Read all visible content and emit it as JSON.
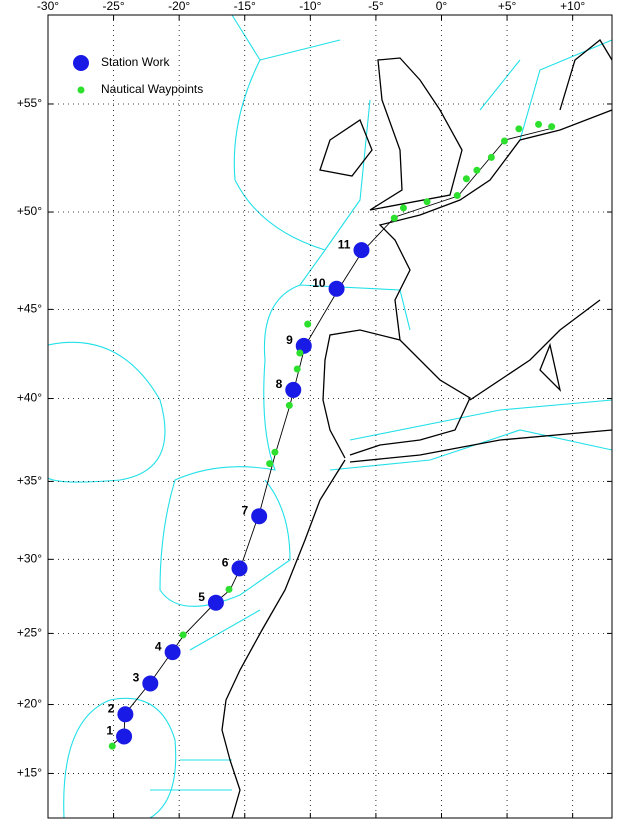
{
  "chart_data": {
    "type": "scatter",
    "projection": "mercator",
    "xlim": [
      -30,
      13
    ],
    "ylim": [
      11.7,
      58.7
    ],
    "xticks": [
      {
        "value": -30,
        "label": "-30°"
      },
      {
        "value": -25,
        "label": "-25°"
      },
      {
        "value": -20,
        "label": "-20°"
      },
      {
        "value": -15,
        "label": "-15°"
      },
      {
        "value": -10,
        "label": "-10°"
      },
      {
        "value": -5,
        "label": "-5°"
      },
      {
        "value": 0,
        "label": "0°"
      },
      {
        "value": 5,
        "label": "+5°"
      },
      {
        "value": 10,
        "label": "+10°"
      }
    ],
    "yticks": [
      {
        "value": 15,
        "label": "+15°"
      },
      {
        "value": 20,
        "label": "+20°"
      },
      {
        "value": 25,
        "label": "+25°"
      },
      {
        "value": 30,
        "label": "+30°"
      },
      {
        "value": 35,
        "label": "+35°"
      },
      {
        "value": 40,
        "label": "+40°"
      },
      {
        "value": 45,
        "label": "+45°"
      },
      {
        "value": 50,
        "label": "+50°"
      },
      {
        "value": 55,
        "label": "+55°"
      }
    ],
    "grid": true,
    "legend": "top-left",
    "series": [
      {
        "name": "Station Work",
        "color": "#1a1ae6",
        "x": [
          -24.2,
          -24.1,
          -22.2,
          -20.5,
          -17.2,
          -15.4,
          -13.9,
          -11.3,
          -10.5,
          -8.0,
          -6.1
        ],
        "values": [
          17.7,
          19.3,
          21.5,
          23.7,
          27.1,
          29.4,
          32.8,
          40.5,
          43.0,
          46.1,
          48.1
        ],
        "labels": [
          "1",
          "2",
          "3",
          "4",
          "5",
          "6",
          "7",
          "8",
          "9",
          "10",
          "11"
        ]
      },
      {
        "name": "Nautical Waypoints",
        "color": "#2ee02e",
        "x": [
          -25.1,
          -19.7,
          -16.2,
          -13.1,
          -12.7,
          -11.6,
          -11.0,
          -10.8,
          -10.2,
          -3.6,
          -2.9,
          -1.1,
          1.2,
          1.9,
          2.7,
          3.8,
          4.8,
          5.9,
          7.4,
          8.4
        ],
        "values": [
          17.0,
          24.9,
          28.0,
          36.1,
          36.8,
          39.6,
          41.7,
          42.6,
          44.2,
          49.7,
          50.2,
          50.5,
          50.8,
          51.6,
          52.0,
          52.6,
          53.35,
          53.9,
          54.1,
          54.0
        ]
      }
    ]
  }
}
